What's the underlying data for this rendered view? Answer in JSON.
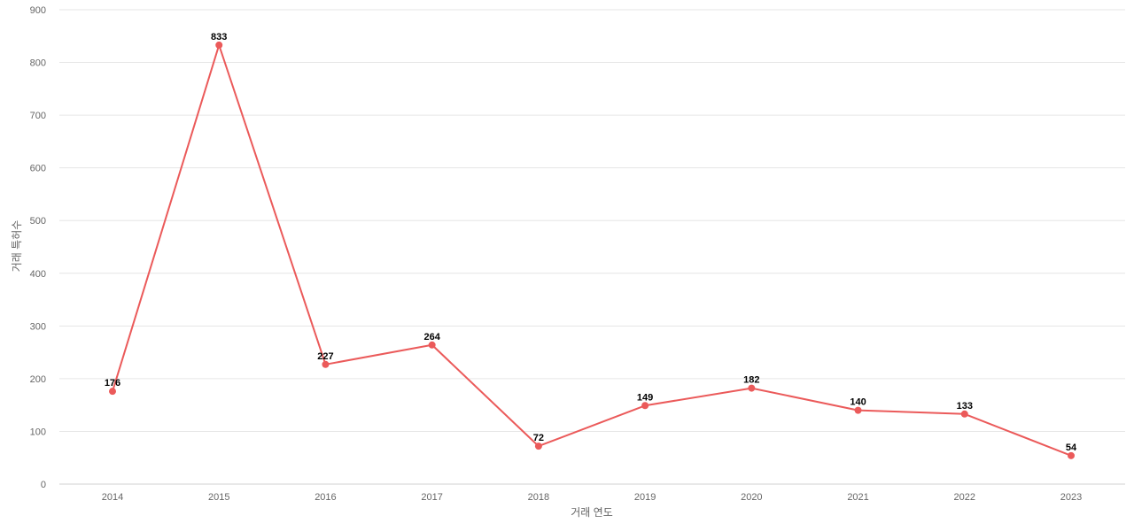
{
  "chart_data": {
    "type": "line",
    "title": "",
    "xlabel": "거래 연도",
    "ylabel": "거래 특허수",
    "categories": [
      "2014",
      "2015",
      "2016",
      "2017",
      "2018",
      "2019",
      "2020",
      "2021",
      "2022",
      "2023"
    ],
    "series": [
      {
        "values": [
          176,
          833,
          227,
          264,
          72,
          149,
          182,
          140,
          133,
          54
        ]
      }
    ],
    "ylim": [
      0,
      900
    ],
    "yticks": [
      0,
      100,
      200,
      300,
      400,
      500,
      600,
      700,
      800,
      900
    ],
    "grid": true,
    "legend": "none",
    "line_color": "#eb5a5a",
    "data_labels": true
  }
}
